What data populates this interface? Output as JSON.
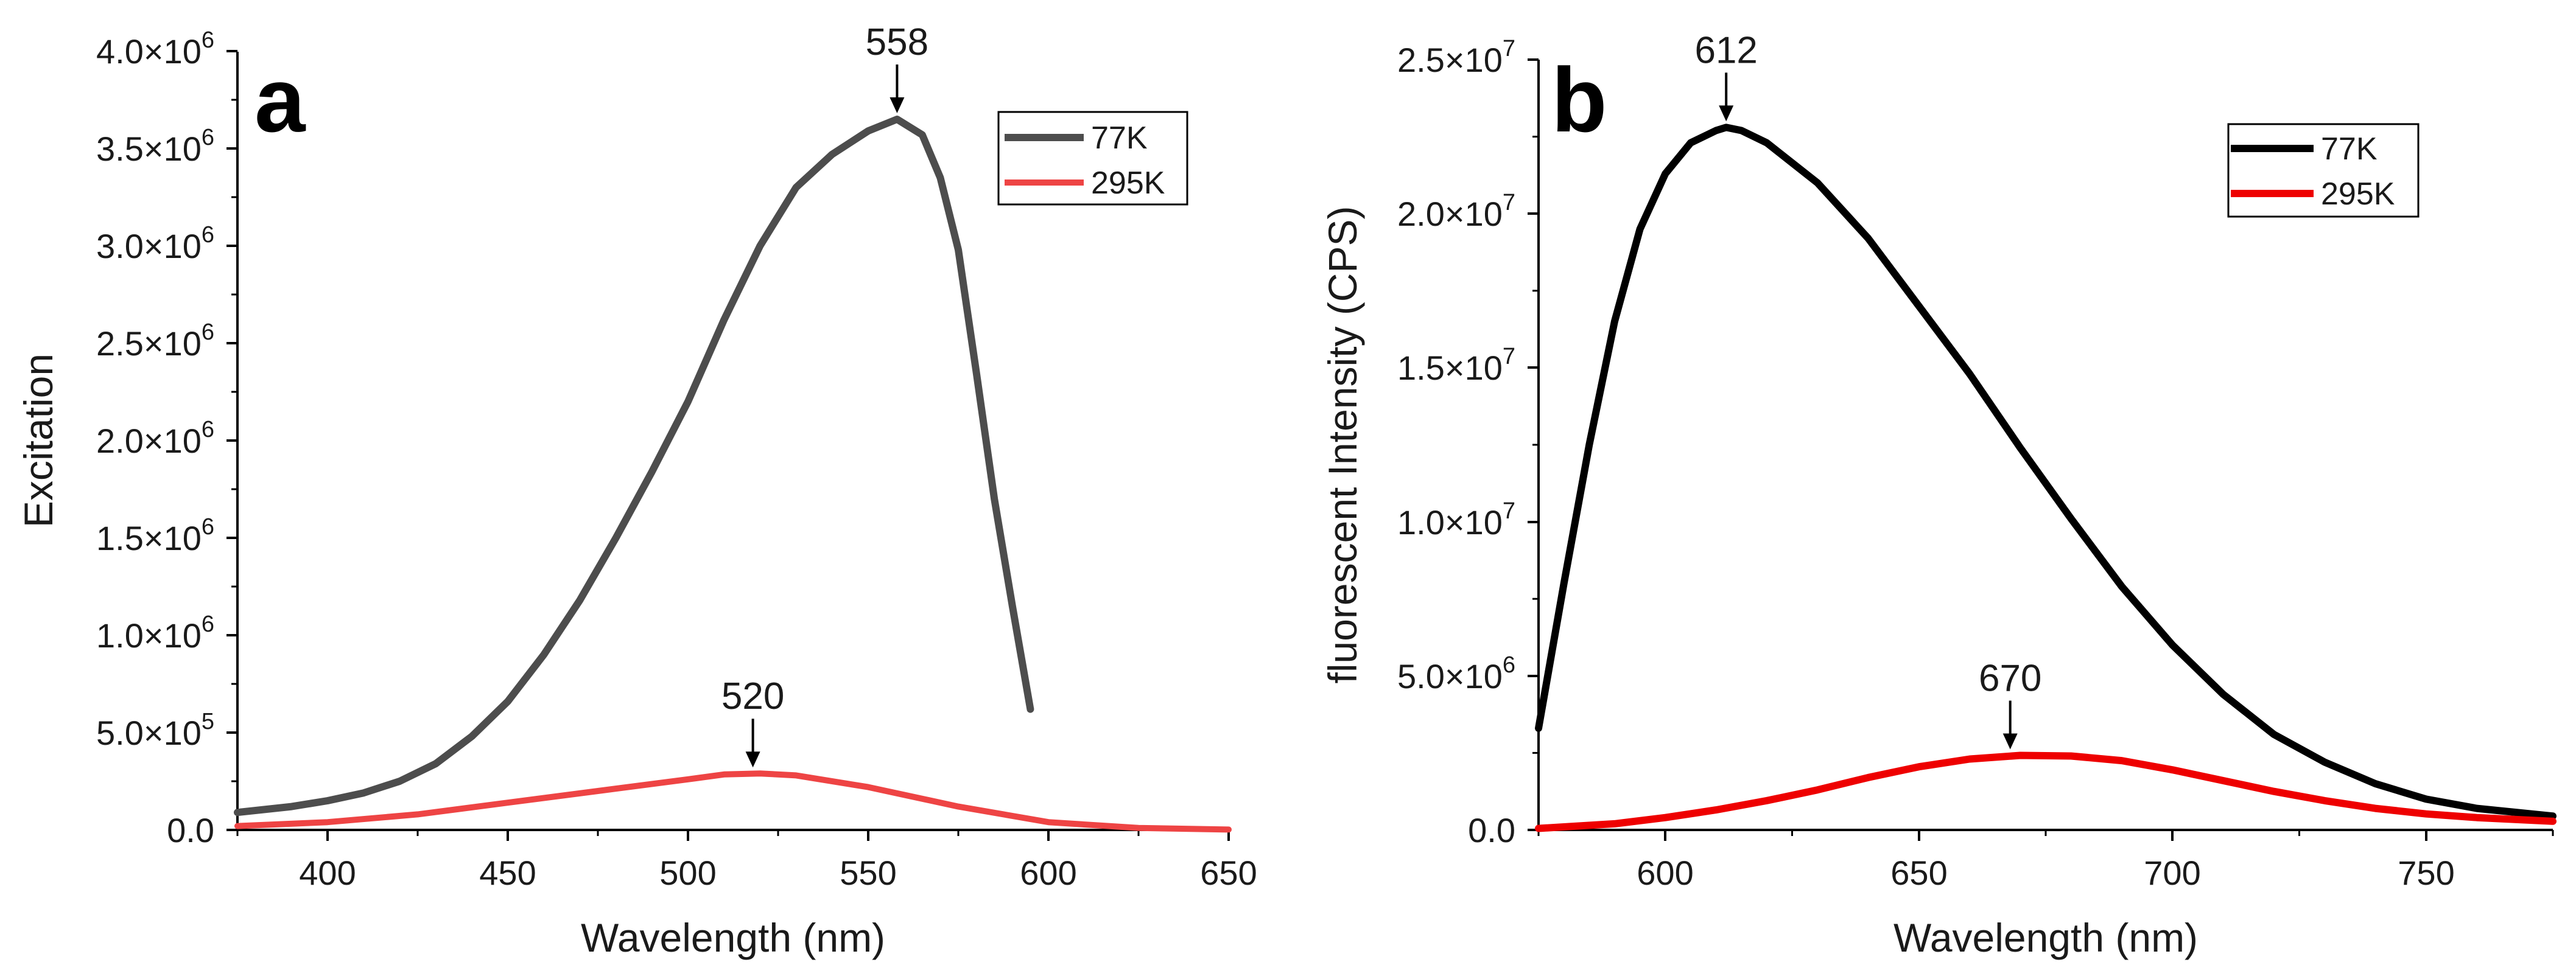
{
  "chart_data": [
    {
      "panel": "a",
      "type": "line",
      "title": "",
      "xlabel": "Wavelength (nm)",
      "ylabel": "Excitation",
      "xlim": [
        375,
        650
      ],
      "ylim": [
        0,
        4000000
      ],
      "x_ticks": [
        400,
        450,
        500,
        550,
        600,
        650
      ],
      "x_tick_labels": [
        "400",
        "450",
        "500",
        "550",
        "600",
        "650"
      ],
      "y_ticks": [
        0,
        500000,
        1000000,
        1500000,
        2000000,
        2500000,
        3000000,
        3500000,
        4000000
      ],
      "y_tick_labels": [
        {
          "mantissa": "0.0",
          "exp": ""
        },
        {
          "mantissa": "5.0×10",
          "exp": "5"
        },
        {
          "mantissa": "1.0×10",
          "exp": "6"
        },
        {
          "mantissa": "1.5×10",
          "exp": "6"
        },
        {
          "mantissa": "2.0×10",
          "exp": "6"
        },
        {
          "mantissa": "2.5×10",
          "exp": "6"
        },
        {
          "mantissa": "3.0×10",
          "exp": "6"
        },
        {
          "mantissa": "3.5×10",
          "exp": "6"
        },
        {
          "mantissa": "4.0×10",
          "exp": "6"
        }
      ],
      "legend_position": "top-right",
      "series": [
        {
          "name": "77K",
          "color": "#4d4d4d",
          "x": [
            375,
            390,
            400,
            410,
            420,
            430,
            440,
            450,
            460,
            470,
            480,
            490,
            500,
            510,
            520,
            530,
            540,
            550,
            558,
            565,
            570,
            575,
            580,
            585,
            590,
            595
          ],
          "y": [
            90000,
            120000,
            150000,
            190000,
            250000,
            340000,
            480000,
            660000,
            900000,
            1180000,
            1500000,
            1840000,
            2200000,
            2620000,
            3000000,
            3300000,
            3470000,
            3590000,
            3650000,
            3570000,
            3350000,
            2980000,
            2350000,
            1700000,
            1150000,
            620000
          ]
        },
        {
          "name": "295K",
          "color": "#ee4444",
          "x": [
            375,
            400,
            425,
            450,
            475,
            500,
            510,
            520,
            530,
            550,
            575,
            600,
            625,
            650
          ],
          "y": [
            20000,
            40000,
            80000,
            140000,
            200000,
            260000,
            285000,
            290000,
            280000,
            220000,
            120000,
            40000,
            10000,
            2000
          ]
        }
      ],
      "annotations": [
        {
          "text": "558",
          "x": 558,
          "y": 3650000
        },
        {
          "text": "520",
          "x": 518,
          "y": 290000
        }
      ]
    },
    {
      "panel": "b",
      "type": "line",
      "title": "",
      "xlabel": "Wavelength (nm)",
      "ylabel": "fluorescent Intensity (CPS)",
      "xlim": [
        575,
        775
      ],
      "ylim": [
        0,
        25000000
      ],
      "x_ticks": [
        600,
        650,
        700,
        750
      ],
      "x_tick_labels": [
        "600",
        "650",
        "700",
        "750"
      ],
      "y_ticks": [
        0,
        5000000,
        10000000,
        15000000,
        20000000,
        25000000
      ],
      "y_tick_labels": [
        {
          "mantissa": "0.0",
          "exp": ""
        },
        {
          "mantissa": "5.0×10",
          "exp": "6"
        },
        {
          "mantissa": "1.0×10",
          "exp": "7"
        },
        {
          "mantissa": "1.5×10",
          "exp": "7"
        },
        {
          "mantissa": "2.0×10",
          "exp": "7"
        },
        {
          "mantissa": "2.5×10",
          "exp": "7"
        }
      ],
      "legend_position": "top-right",
      "series": [
        {
          "name": "77K",
          "color": "#000000",
          "x": [
            575,
            580,
            585,
            590,
            595,
            600,
            605,
            610,
            612,
            615,
            620,
            630,
            640,
            650,
            660,
            670,
            680,
            690,
            700,
            710,
            720,
            730,
            740,
            750,
            760,
            775
          ],
          "y": [
            3300000,
            8000000,
            12500000,
            16500000,
            19500000,
            21300000,
            22300000,
            22700000,
            22800000,
            22700000,
            22300000,
            21000000,
            19200000,
            17000000,
            14800000,
            12400000,
            10100000,
            7900000,
            6000000,
            4400000,
            3100000,
            2200000,
            1500000,
            1000000,
            700000,
            450000
          ]
        },
        {
          "name": "295K",
          "color": "#ee0000",
          "x": [
            575,
            590,
            600,
            610,
            620,
            630,
            640,
            650,
            660,
            670,
            680,
            690,
            700,
            710,
            720,
            730,
            740,
            750,
            760,
            775
          ],
          "y": [
            50000,
            200000,
            400000,
            650000,
            950000,
            1300000,
            1700000,
            2050000,
            2300000,
            2420000,
            2400000,
            2250000,
            1950000,
            1600000,
            1250000,
            950000,
            700000,
            520000,
            400000,
            280000
          ]
        }
      ],
      "annotations": [
        {
          "text": "612",
          "x": 612,
          "y": 22800000
        },
        {
          "text": "670",
          "x": 668,
          "y": 2420000
        }
      ]
    }
  ]
}
